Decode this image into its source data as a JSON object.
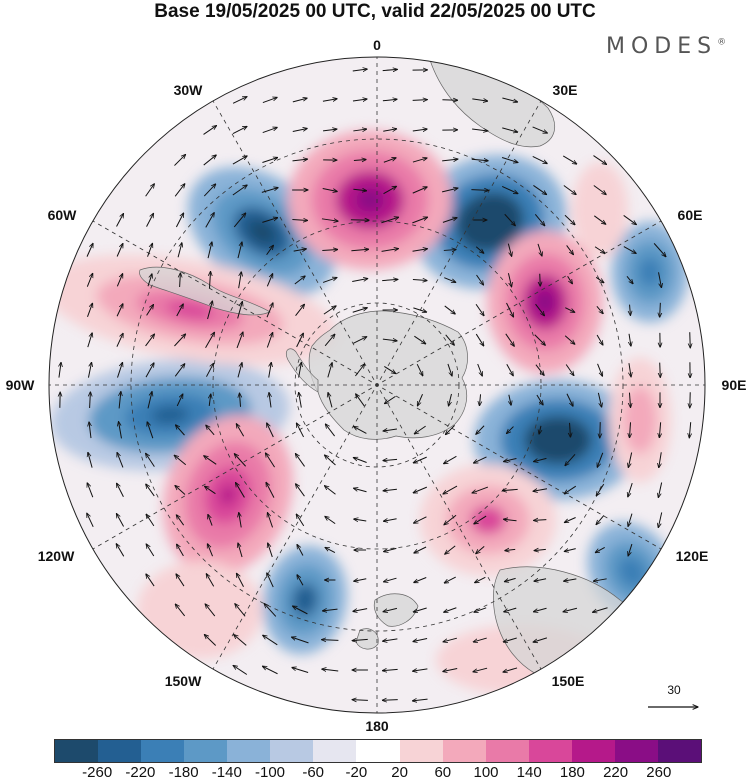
{
  "title": "Base 19/05/2025 00 UTC, valid 22/05/2025 00 UTC",
  "brand": "MODES",
  "brand_mark": "®",
  "longitude_labels": {
    "lon_0": "0",
    "lon_30e": "30E",
    "lon_60e": "60E",
    "lon_90e": "90E",
    "lon_120e": "120E",
    "lon_150e": "150E",
    "lon_180": "180",
    "lon_150w": "150W",
    "lon_120w": "120W",
    "lon_90w": "90W",
    "lon_60w": "60W",
    "lon_30w": "30W"
  },
  "vector_scale": {
    "label": "30",
    "value": 30
  },
  "colorbar": {
    "colors": [
      "#1d4a6c",
      "#235f92",
      "#3b7fb6",
      "#5d99c6",
      "#8ab2d8",
      "#b8c9e3",
      "#e6e6f0",
      "#ffffff",
      "#f7d3d6",
      "#f3a9bb",
      "#e97aa8",
      "#d9479a",
      "#b5198a",
      "#8a0d86",
      "#5b0f78"
    ],
    "ticks": [
      "-260",
      "-220",
      "-180",
      "-140",
      "-100",
      "-60",
      "-20",
      "20",
      "60",
      "100",
      "140",
      "180",
      "220",
      "260"
    ]
  },
  "map": {
    "projection": "south polar stereographic",
    "land_color": "#d6d6d6",
    "anomaly_centers": [
      {
        "name": "negative-center",
        "lon": "60W-30W",
        "sign": "negative"
      },
      {
        "name": "positive-center",
        "lon": "0",
        "sign": "positive"
      },
      {
        "name": "negative-center",
        "lon": "30E",
        "sign": "negative"
      },
      {
        "name": "positive-center",
        "lon": "60E",
        "sign": "positive"
      },
      {
        "name": "negative-center",
        "lon": "60E-90E",
        "sign": "negative"
      },
      {
        "name": "negative-center",
        "lon": "90E-120E",
        "sign": "negative"
      },
      {
        "name": "positive-center",
        "lon": "150E",
        "sign": "positive"
      },
      {
        "name": "negative-center",
        "lon": "120E",
        "sign": "negative"
      },
      {
        "name": "negative-center",
        "lon": "150W",
        "sign": "negative"
      },
      {
        "name": "positive-center",
        "lon": "120W",
        "sign": "positive"
      },
      {
        "name": "negative-center",
        "lon": "90W",
        "sign": "negative"
      },
      {
        "name": "positive-center",
        "lon": "60W",
        "sign": "positive"
      }
    ]
  }
}
